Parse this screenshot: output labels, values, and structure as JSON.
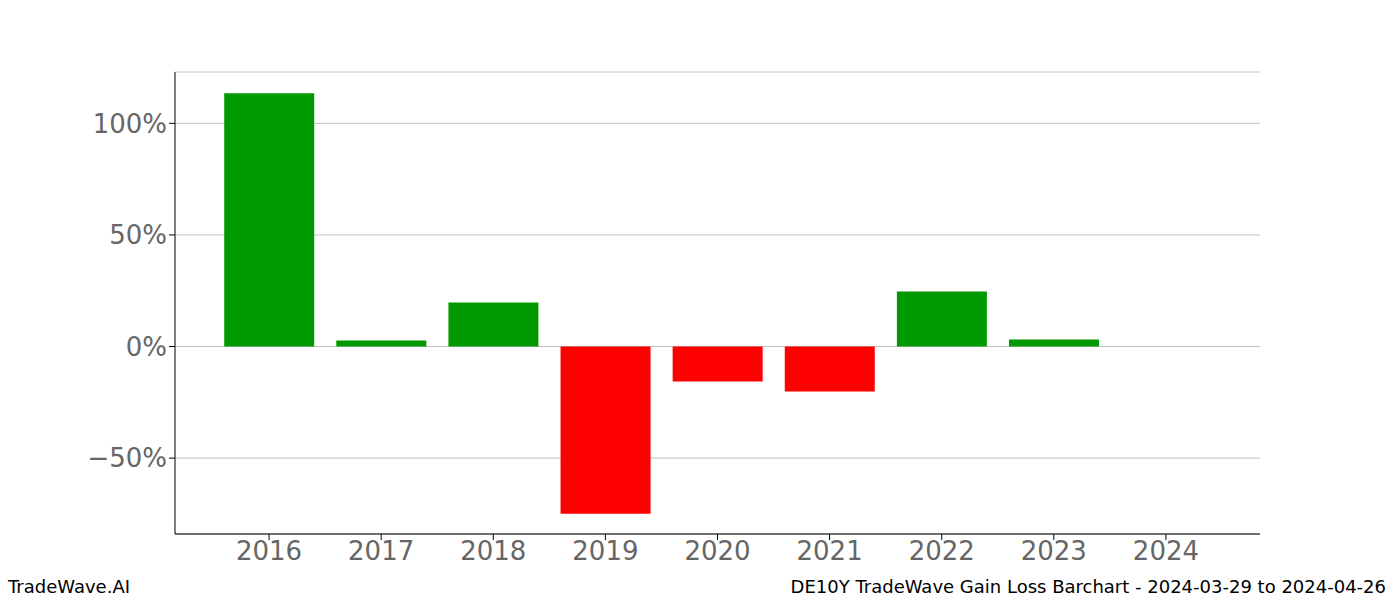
{
  "chart_data": {
    "type": "bar",
    "title": "DE10Y TradeWave Gain Loss Barchart - 2024-03-29 to 2024-04-26",
    "annotations": [
      "TradeWave.AI"
    ],
    "categories": [
      "2016",
      "2017",
      "2018",
      "2019",
      "2020",
      "2021",
      "2022",
      "2023",
      "2024"
    ],
    "values": [
      113.5,
      2.7,
      19.7,
      -74.9,
      -15.7,
      -20.2,
      24.7,
      3.1,
      0
    ],
    "colors": [
      "#009900",
      "#009900",
      "#009900",
      "#ff0000",
      "#ff0000",
      "#ff0000",
      "#009900",
      "#009900",
      "#009900"
    ],
    "ylim": [
      -84,
      123
    ],
    "yticks": [
      {
        "value": -50,
        "label": "−50%"
      },
      {
        "value": 0,
        "label": "0%"
      },
      {
        "value": 50,
        "label": "50%"
      },
      {
        "value": 100,
        "label": "100%"
      }
    ],
    "grid": true
  }
}
